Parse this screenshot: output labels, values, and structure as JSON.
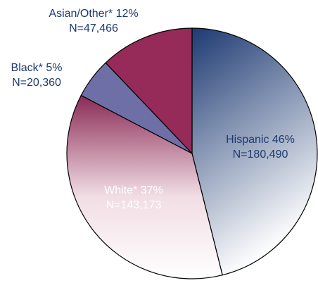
{
  "chart_data": {
    "type": "pie",
    "title": "",
    "start_angle_deg": 0,
    "direction": "clockwise",
    "slices": [
      {
        "category": "Hispanic",
        "percent_label": "Hispanic 46%",
        "n_label": "N=180,490",
        "value": 180490,
        "percent": 46,
        "gradient": [
          "#1d3a72",
          "#ffffff"
        ],
        "text_color": "#1f3a6e"
      },
      {
        "category": "White*",
        "percent_label": "White* 37%",
        "n_label": "N=143,173",
        "value": 143173,
        "percent": 37,
        "gradient": [
          "#ffffff",
          "#8b2a55"
        ],
        "text_color": "#ffffff"
      },
      {
        "category": "Black*",
        "percent_label": "Black* 5%",
        "n_label": "N=20,360",
        "value": 20360,
        "percent": 5,
        "gradient": [
          "#6f6fa8",
          "#6f6fa8"
        ],
        "text_color": "#1f3a6e"
      },
      {
        "category": "Asian/Other*",
        "percent_label": "Asian/Other* 12%",
        "n_label": "N=47,466",
        "value": 47466,
        "percent": 12,
        "gradient": [
          "#962a58",
          "#962a58"
        ],
        "text_color": "#1f3a6e"
      }
    ]
  }
}
